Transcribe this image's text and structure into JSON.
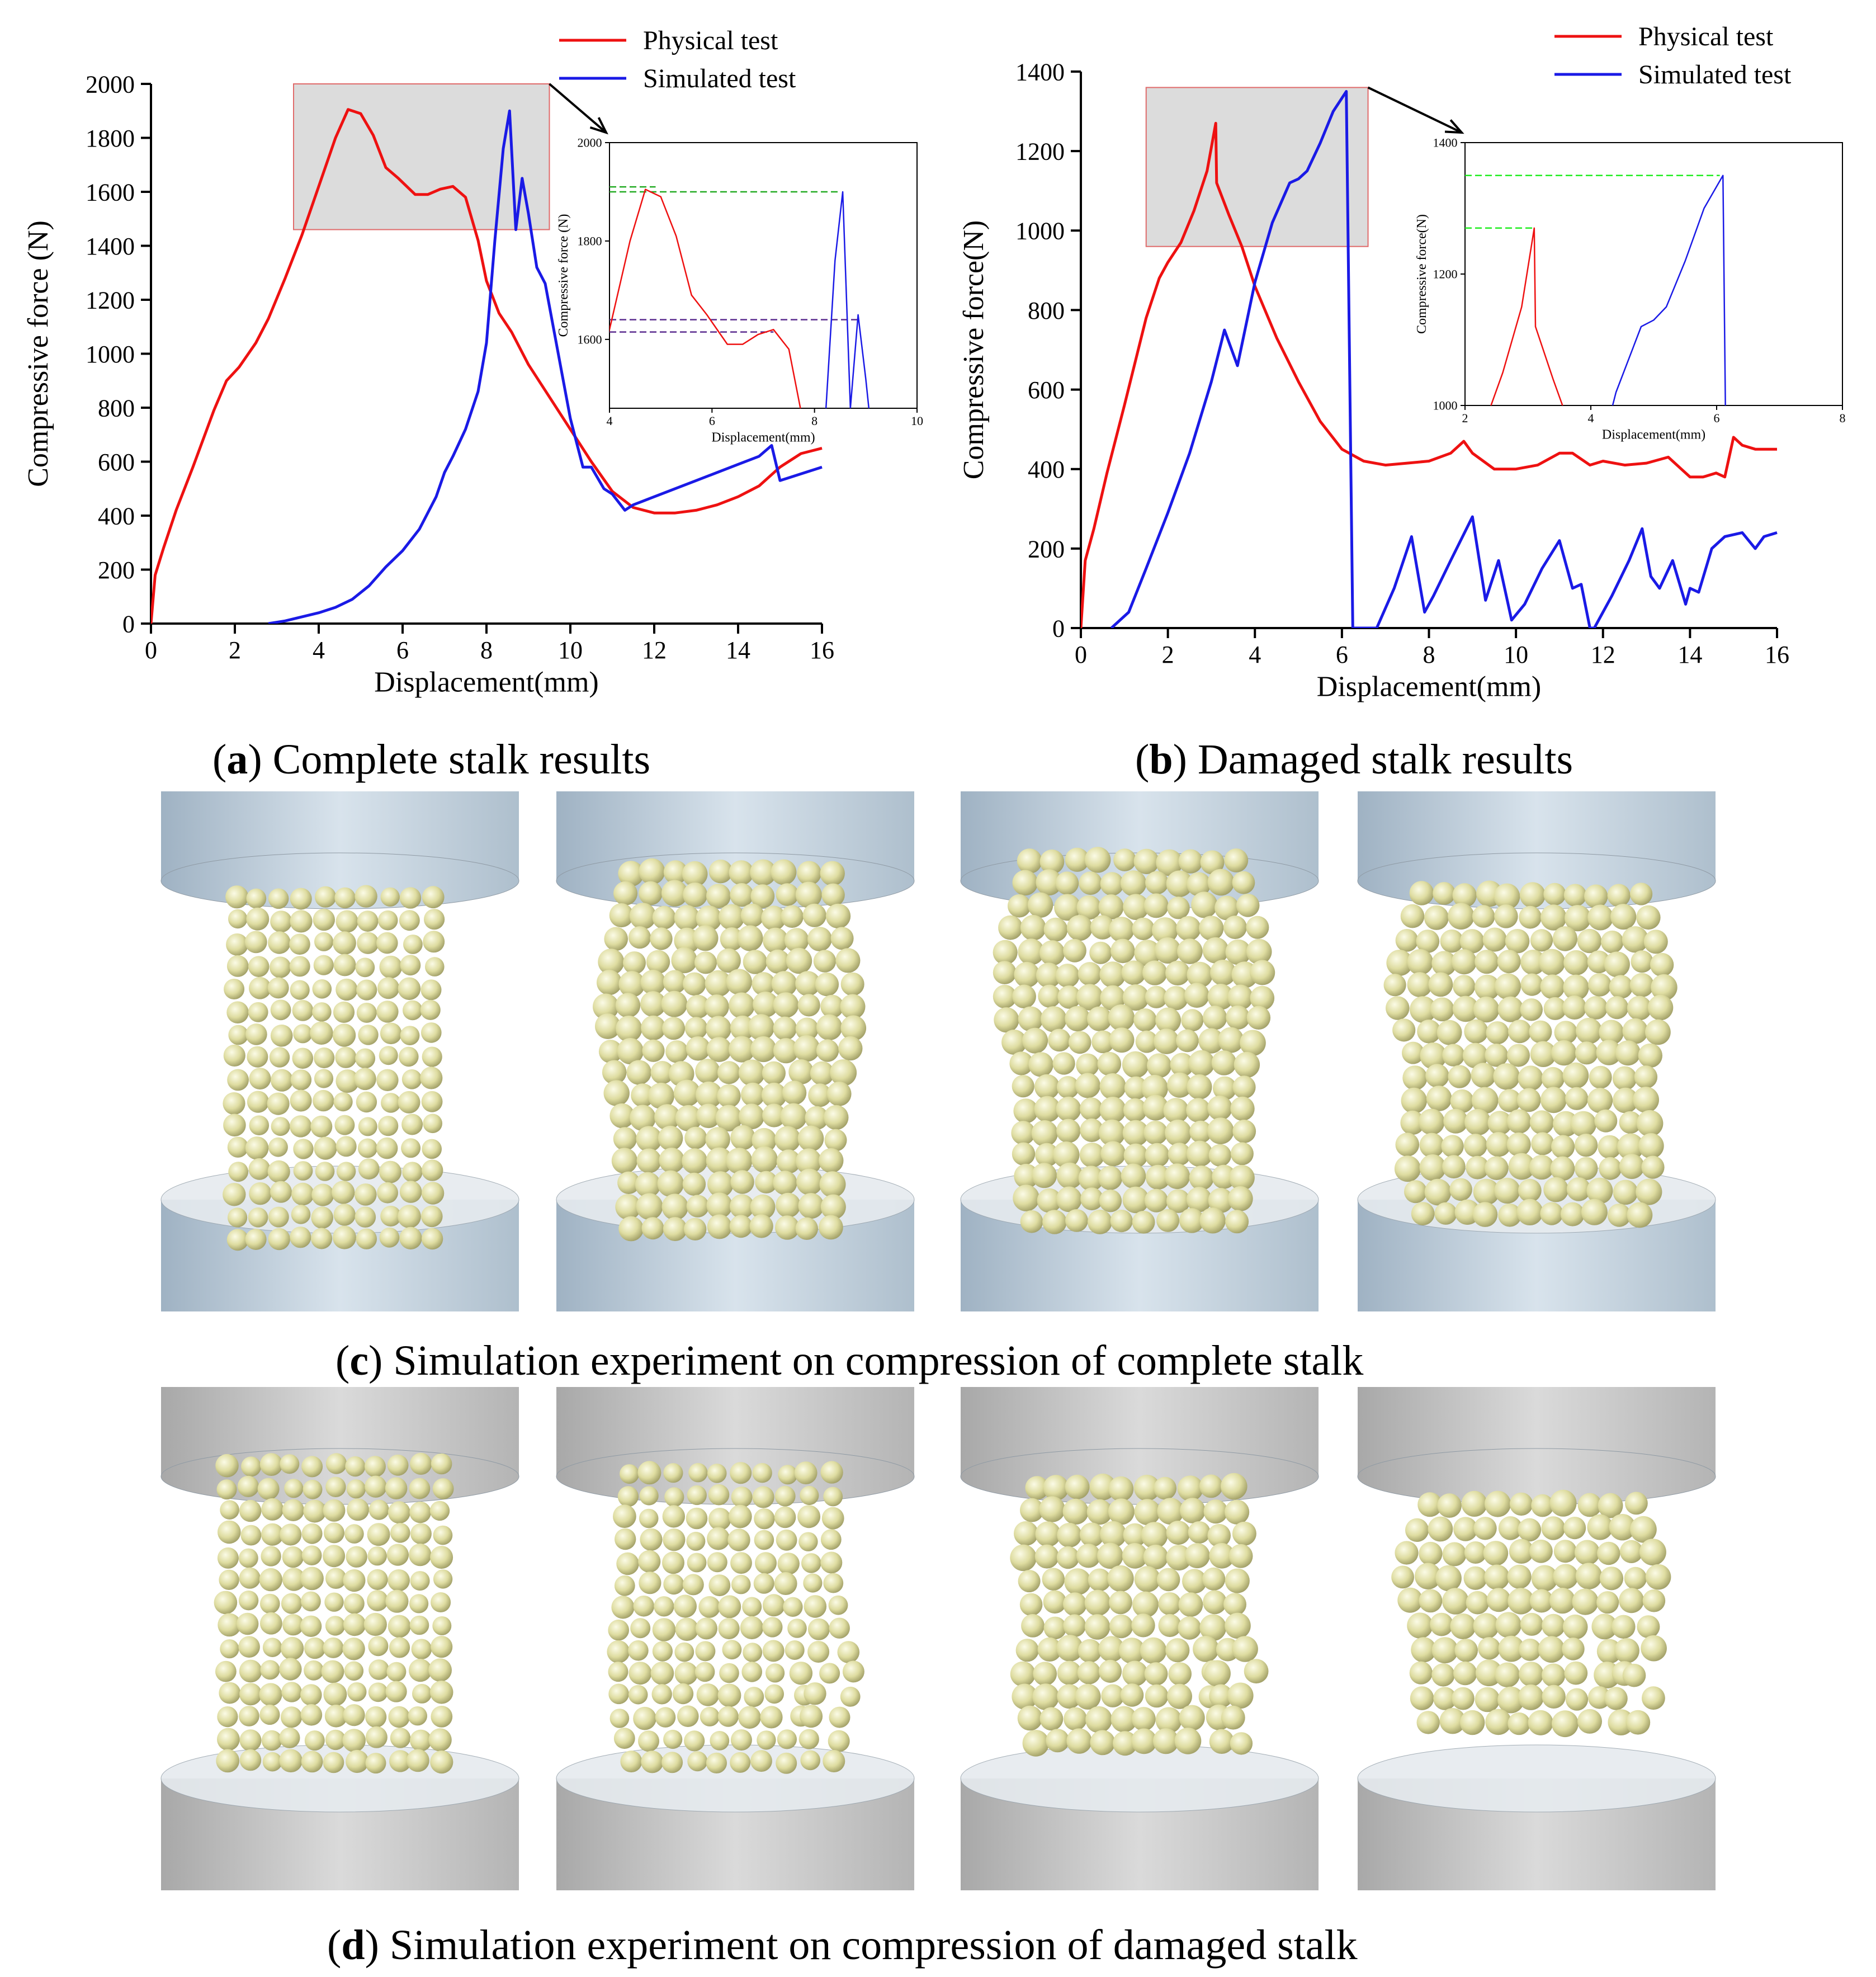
{
  "colors": {
    "physical": "#ee1111",
    "simulated": "#1a1ae6",
    "zoom_box_fill": "#dcdcdc",
    "zoom_box_stroke": "#e06b6b",
    "guide_green": "#22aa22",
    "guide_purple": "#5b2c8f",
    "guide_bright_green": "#22ee22",
    "platen_blue": "#bccbd8",
    "platen_grey": "#c6c6c6",
    "particle": "#dedca0"
  },
  "legend": {
    "physical": "Physical test",
    "simulated": "Simulated test"
  },
  "captions": {
    "a": {
      "letter": "a",
      "text": " Complete stalk results"
    },
    "b": {
      "letter": "b",
      "text": " Damaged stalk results"
    },
    "c": {
      "letter": "c",
      "text": " Simulation experiment on compression of complete stalk"
    },
    "d": {
      "letter": "d",
      "text": " Simulation experiment on compression of damaged stalk"
    }
  },
  "chart_data": [
    {
      "id": "a",
      "type": "line",
      "xlabel": "Displacement(mm)",
      "ylabel": "Compressive force (N)",
      "xlim": [
        0,
        16
      ],
      "ylim": [
        0,
        2000
      ],
      "xticks": [
        0,
        2,
        4,
        6,
        8,
        10,
        12,
        14,
        16
      ],
      "yticks": [
        0,
        200,
        400,
        600,
        800,
        1000,
        1200,
        1400,
        1600,
        1800,
        2000
      ],
      "legend_position": "top-right",
      "zoom_region": {
        "x": [
          3.4,
          9.5
        ],
        "y": [
          1460,
          2000
        ]
      },
      "series": [
        {
          "name": "Physical test",
          "color_key": "physical",
          "x": [
            0,
            0.1,
            0.3,
            0.6,
            1.0,
            1.5,
            1.8,
            2.1,
            2.5,
            2.8,
            3.2,
            3.6,
            4.0,
            4.4,
            4.7,
            5.0,
            5.3,
            5.6,
            5.9,
            6.3,
            6.6,
            6.9,
            7.2,
            7.5,
            7.8,
            8.0,
            8.3,
            8.6,
            9.0,
            9.5,
            10.0,
            10.5,
            11.0,
            11.5,
            12.0,
            12.5,
            13.0,
            13.5,
            14.0,
            14.5,
            15.0,
            15.5,
            16.0
          ],
          "y": [
            0,
            180,
            280,
            420,
            580,
            790,
            900,
            950,
            1040,
            1130,
            1280,
            1440,
            1620,
            1800,
            1905,
            1890,
            1810,
            1690,
            1650,
            1590,
            1590,
            1610,
            1620,
            1580,
            1420,
            1270,
            1150,
            1080,
            960,
            840,
            720,
            600,
            490,
            430,
            410,
            410,
            420,
            440,
            470,
            510,
            580,
            630,
            650
          ]
        },
        {
          "name": "Simulated test",
          "color_key": "simulated",
          "x": [
            2.8,
            3.2,
            3.6,
            4.0,
            4.4,
            4.8,
            5.2,
            5.6,
            6.0,
            6.4,
            6.8,
            7.0,
            7.2,
            7.5,
            7.8,
            8.0,
            8.2,
            8.4,
            8.55,
            8.7,
            8.85,
            9.0,
            9.2,
            9.4,
            9.7,
            10.0,
            10.3,
            10.5,
            10.8,
            11.0,
            11.3,
            11.5,
            12.0,
            13.0,
            14.0,
            14.5,
            14.8,
            15.0,
            15.2,
            15.5,
            16.0
          ],
          "y": [
            0,
            10,
            25,
            40,
            60,
            90,
            140,
            210,
            270,
            350,
            470,
            560,
            620,
            720,
            860,
            1040,
            1420,
            1760,
            1900,
            1460,
            1650,
            1520,
            1320,
            1260,
            1010,
            760,
            580,
            580,
            500,
            480,
            420,
            440,
            470,
            530,
            590,
            620,
            660,
            530,
            540,
            555,
            580
          ]
        }
      ]
    },
    {
      "id": "a-inset",
      "type": "line",
      "xlabel": "Displacement(mm)",
      "ylabel": "Compressive force (N)",
      "xlim": [
        4,
        10
      ],
      "ylim": [
        1460,
        2000
      ],
      "xticks": [
        4,
        6,
        8,
        10
      ],
      "yticks": [
        1600,
        1800,
        2000
      ],
      "guides": [
        {
          "y": 1910,
          "x0": 4,
          "x1": 4.9,
          "color_key": "guide_green"
        },
        {
          "y": 1900,
          "x0": 4,
          "x1": 8.5,
          "color_key": "guide_green"
        },
        {
          "y": 1640,
          "x0": 4,
          "x1": 8.9,
          "color_key": "guide_purple"
        },
        {
          "y": 1615,
          "x0": 4,
          "x1": 7.2,
          "color_key": "guide_purple"
        }
      ]
    },
    {
      "id": "b",
      "type": "line",
      "xlabel": "Displacement(mm)",
      "ylabel": "Compressive force(N)",
      "xlim": [
        0,
        16
      ],
      "ylim": [
        0,
        1400
      ],
      "xticks": [
        0,
        2,
        4,
        6,
        8,
        10,
        12,
        14,
        16
      ],
      "yticks": [
        0,
        200,
        400,
        600,
        800,
        1000,
        1200,
        1400
      ],
      "legend_position": "top-right",
      "zoom_region": {
        "x": [
          1.5,
          6.6
        ],
        "y": [
          960,
          1360
        ]
      },
      "series": [
        {
          "name": "Physical test",
          "color_key": "physical",
          "x": [
            0,
            0.1,
            0.3,
            0.6,
            1.0,
            1.5,
            1.8,
            2.0,
            2.3,
            2.6,
            2.9,
            3.1,
            3.12,
            3.4,
            3.7,
            4.0,
            4.5,
            5.0,
            5.5,
            6.0,
            6.5,
            7.0,
            7.5,
            8.0,
            8.5,
            8.8,
            9.0,
            9.5,
            10.0,
            10.5,
            11.0,
            11.3,
            11.7,
            12.0,
            12.5,
            13.0,
            13.5,
            13.8,
            14.0,
            14.3,
            14.6,
            14.8,
            15.0,
            15.2,
            15.5,
            16.0
          ],
          "y": [
            0,
            170,
            250,
            390,
            560,
            780,
            880,
            920,
            970,
            1050,
            1150,
            1270,
            1120,
            1040,
            960,
            860,
            730,
            620,
            520,
            450,
            420,
            410,
            415,
            420,
            440,
            470,
            440,
            400,
            400,
            410,
            440,
            440,
            410,
            420,
            410,
            415,
            430,
            400,
            380,
            380,
            390,
            380,
            480,
            460,
            450,
            450
          ]
        },
        {
          "name": "Simulated test",
          "color_key": "simulated",
          "x": [
            0.7,
            1.1,
            1.5,
            2.0,
            2.5,
            3.0,
            3.3,
            3.6,
            4.0,
            4.4,
            4.8,
            5.0,
            5.2,
            5.5,
            5.8,
            6.1,
            6.25,
            6.5,
            6.8,
            7.2,
            7.6,
            7.9,
            8.1,
            8.5,
            9.0,
            9.3,
            9.6,
            9.9,
            10.2,
            10.6,
            11.0,
            11.3,
            11.5,
            11.7,
            11.8,
            12.2,
            12.6,
            12.9,
            13.1,
            13.3,
            13.6,
            13.9,
            14.0,
            14.2,
            14.5,
            14.8,
            15.2,
            15.5,
            15.7,
            16.0
          ],
          "y": [
            0,
            40,
            150,
            290,
            440,
            620,
            750,
            660,
            870,
            1020,
            1120,
            1130,
            1150,
            1220,
            1300,
            1350,
            0,
            0,
            0,
            100,
            230,
            40,
            80,
            170,
            280,
            70,
            170,
            20,
            60,
            150,
            220,
            100,
            110,
            0,
            0,
            80,
            170,
            250,
            130,
            100,
            170,
            60,
            100,
            90,
            200,
            230,
            240,
            200,
            230,
            240
          ]
        }
      ]
    },
    {
      "id": "b-inset",
      "type": "line",
      "xlabel": "Displacement(mm)",
      "ylabel": "Compressive force(N)",
      "xlim": [
        2,
        8
      ],
      "ylim": [
        1000,
        1400
      ],
      "xticks": [
        2,
        4,
        6,
        8
      ],
      "yticks": [
        1000,
        1200,
        1400
      ],
      "guides": [
        {
          "y": 1350,
          "x0": 2,
          "x1": 6.05,
          "color_key": "guide_bright_green"
        },
        {
          "y": 1270,
          "x0": 2,
          "x1": 3.1,
          "color_key": "guide_bright_green"
        }
      ]
    }
  ]
}
